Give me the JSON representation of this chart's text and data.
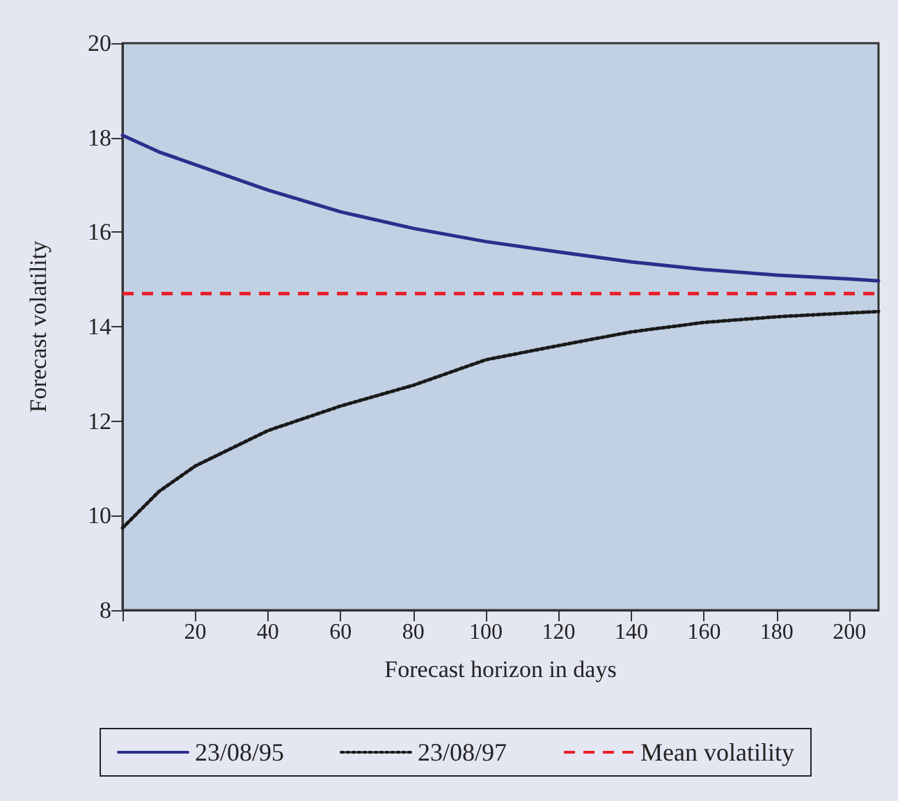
{
  "chart_data": {
    "type": "line",
    "xlabel": "Forecast horizon in days",
    "ylabel": "Forecast volatility",
    "x": [
      0,
      10,
      20,
      40,
      60,
      80,
      100,
      120,
      140,
      160,
      180,
      200,
      208
    ],
    "series": [
      {
        "name": "23/08/95",
        "color": "#2b2e8c",
        "line_style": "solid",
        "values": [
          18.05,
          17.7,
          17.43,
          16.89,
          16.43,
          16.08,
          15.8,
          15.58,
          15.37,
          15.21,
          15.09,
          15.01,
          14.97
        ]
      },
      {
        "name": "23/08/97",
        "color": "#1a1a1a",
        "line_style": "dotted",
        "values": [
          9.74,
          10.51,
          11.05,
          11.8,
          12.32,
          12.76,
          13.3,
          13.6,
          13.89,
          14.09,
          14.21,
          14.29,
          14.32
        ]
      }
    ],
    "ref_lines": [
      {
        "axis": "y",
        "value": 14.7,
        "label": "Mean volatility",
        "color": "#e8202a",
        "line_style": "dashed"
      }
    ],
    "xlim": [
      0,
      208
    ],
    "xticks": [
      {
        "value": 0,
        "label": null
      },
      20,
      40,
      60,
      80,
      100,
      120,
      140,
      160,
      180,
      200
    ],
    "ylim": [
      8,
      20
    ],
    "yticks": [
      8,
      10,
      12,
      14,
      16,
      18,
      20
    ],
    "grid": false,
    "legend": "bottom",
    "marker": "none"
  }
}
